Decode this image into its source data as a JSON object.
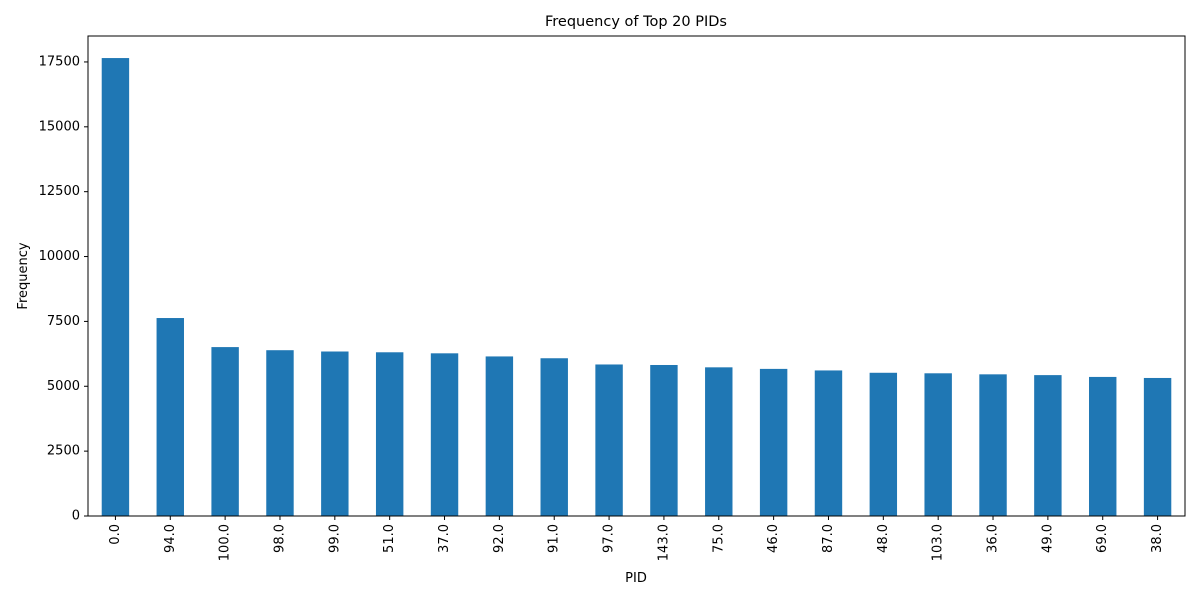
{
  "chart_data": {
    "type": "bar",
    "title": "Frequency of Top 20 PIDs",
    "xlabel": "PID",
    "ylabel": "Frequency",
    "categories": [
      "0.0",
      "94.0",
      "100.0",
      "98.0",
      "99.0",
      "51.0",
      "37.0",
      "92.0",
      "91.0",
      "97.0",
      "143.0",
      "75.0",
      "46.0",
      "87.0",
      "48.0",
      "103.0",
      "36.0",
      "49.0",
      "69.0",
      "38.0"
    ],
    "values": [
      17650,
      7630,
      6510,
      6390,
      6340,
      6310,
      6270,
      6150,
      6080,
      5840,
      5820,
      5730,
      5670,
      5610,
      5520,
      5500,
      5460,
      5430,
      5360,
      5320
    ],
    "yticks": [
      0,
      2500,
      5000,
      7500,
      10000,
      12500,
      15000,
      17500
    ],
    "ylim": [
      0,
      18500
    ],
    "grid": false,
    "legend": "none",
    "bar_color": "#1f77b4"
  }
}
